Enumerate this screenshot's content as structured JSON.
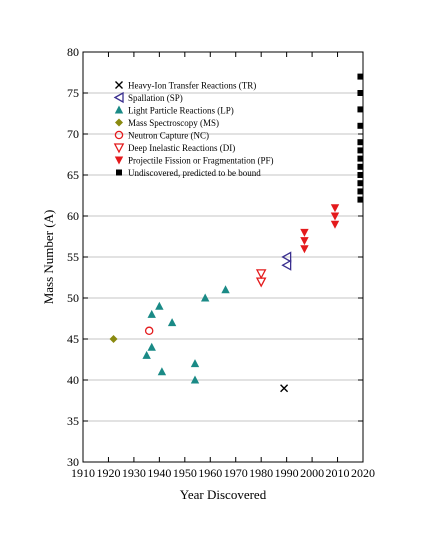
{
  "chart_data": {
    "type": "scatter",
    "title": "",
    "xlabel": "Year Discovered",
    "ylabel": "Mass Number (A)",
    "xlim": [
      1910,
      2020
    ],
    "ylim": [
      30,
      80
    ],
    "x_ticks": [
      1910,
      1920,
      1930,
      1940,
      1950,
      1960,
      1970,
      1980,
      1990,
      2000,
      2010,
      2020
    ],
    "y_ticks": [
      30,
      35,
      40,
      45,
      50,
      55,
      60,
      65,
      70,
      75,
      80
    ],
    "grid": "horizontal",
    "legend_position": "top-left",
    "series": [
      {
        "name": "Heavy-Ion Transfer Reactions  (TR)",
        "marker": "x",
        "color": "#000000",
        "points": [
          [
            1989,
            39
          ]
        ]
      },
      {
        "name": "Spallation (SP)",
        "marker": "triangle-left-open",
        "color": "#3a2f8f",
        "points": [
          [
            1990,
            54
          ],
          [
            1990,
            55
          ]
        ]
      },
      {
        "name": "Light Particle Reactions (LP)",
        "marker": "triangle-up",
        "color": "#1a8a86",
        "points": [
          [
            1935,
            43
          ],
          [
            1937,
            44
          ],
          [
            1937,
            48
          ],
          [
            1940,
            49
          ],
          [
            1941,
            41
          ],
          [
            1945,
            47
          ],
          [
            1954,
            42
          ],
          [
            1954,
            40
          ],
          [
            1958,
            50
          ],
          [
            1966,
            51
          ]
        ]
      },
      {
        "name": "Mass Spectroscopy (MS)",
        "marker": "diamond",
        "color": "#8a8a10",
        "points": [
          [
            1922,
            45
          ]
        ]
      },
      {
        "name": "Neutron Capture (NC)",
        "marker": "circle-open",
        "color": "#e41a1c",
        "points": [
          [
            1936,
            46
          ]
        ]
      },
      {
        "name": "Deep Inelastic Reactions (DI)",
        "marker": "triangle-down-open",
        "color": "#e41a1c",
        "points": [
          [
            1980,
            52
          ],
          [
            1980,
            53
          ]
        ]
      },
      {
        "name": "Projectile Fission or Fragmentation (PF)",
        "marker": "triangle-down",
        "color": "#e41a1c",
        "points": [
          [
            1997,
            56
          ],
          [
            1997,
            57
          ],
          [
            1997,
            58
          ],
          [
            2009,
            59
          ],
          [
            2009,
            60
          ],
          [
            2009,
            61
          ]
        ]
      },
      {
        "name": "Undiscovered, predicted to be bound",
        "marker": "square",
        "color": "#000000",
        "points": [
          [
            2019,
            62
          ],
          [
            2019,
            63
          ],
          [
            2019,
            64
          ],
          [
            2019,
            65
          ],
          [
            2019,
            66
          ],
          [
            2019,
            67
          ],
          [
            2019,
            68
          ],
          [
            2019,
            69
          ],
          [
            2019,
            71
          ],
          [
            2019,
            73
          ],
          [
            2019,
            75
          ],
          [
            2019,
            77
          ]
        ]
      }
    ]
  }
}
